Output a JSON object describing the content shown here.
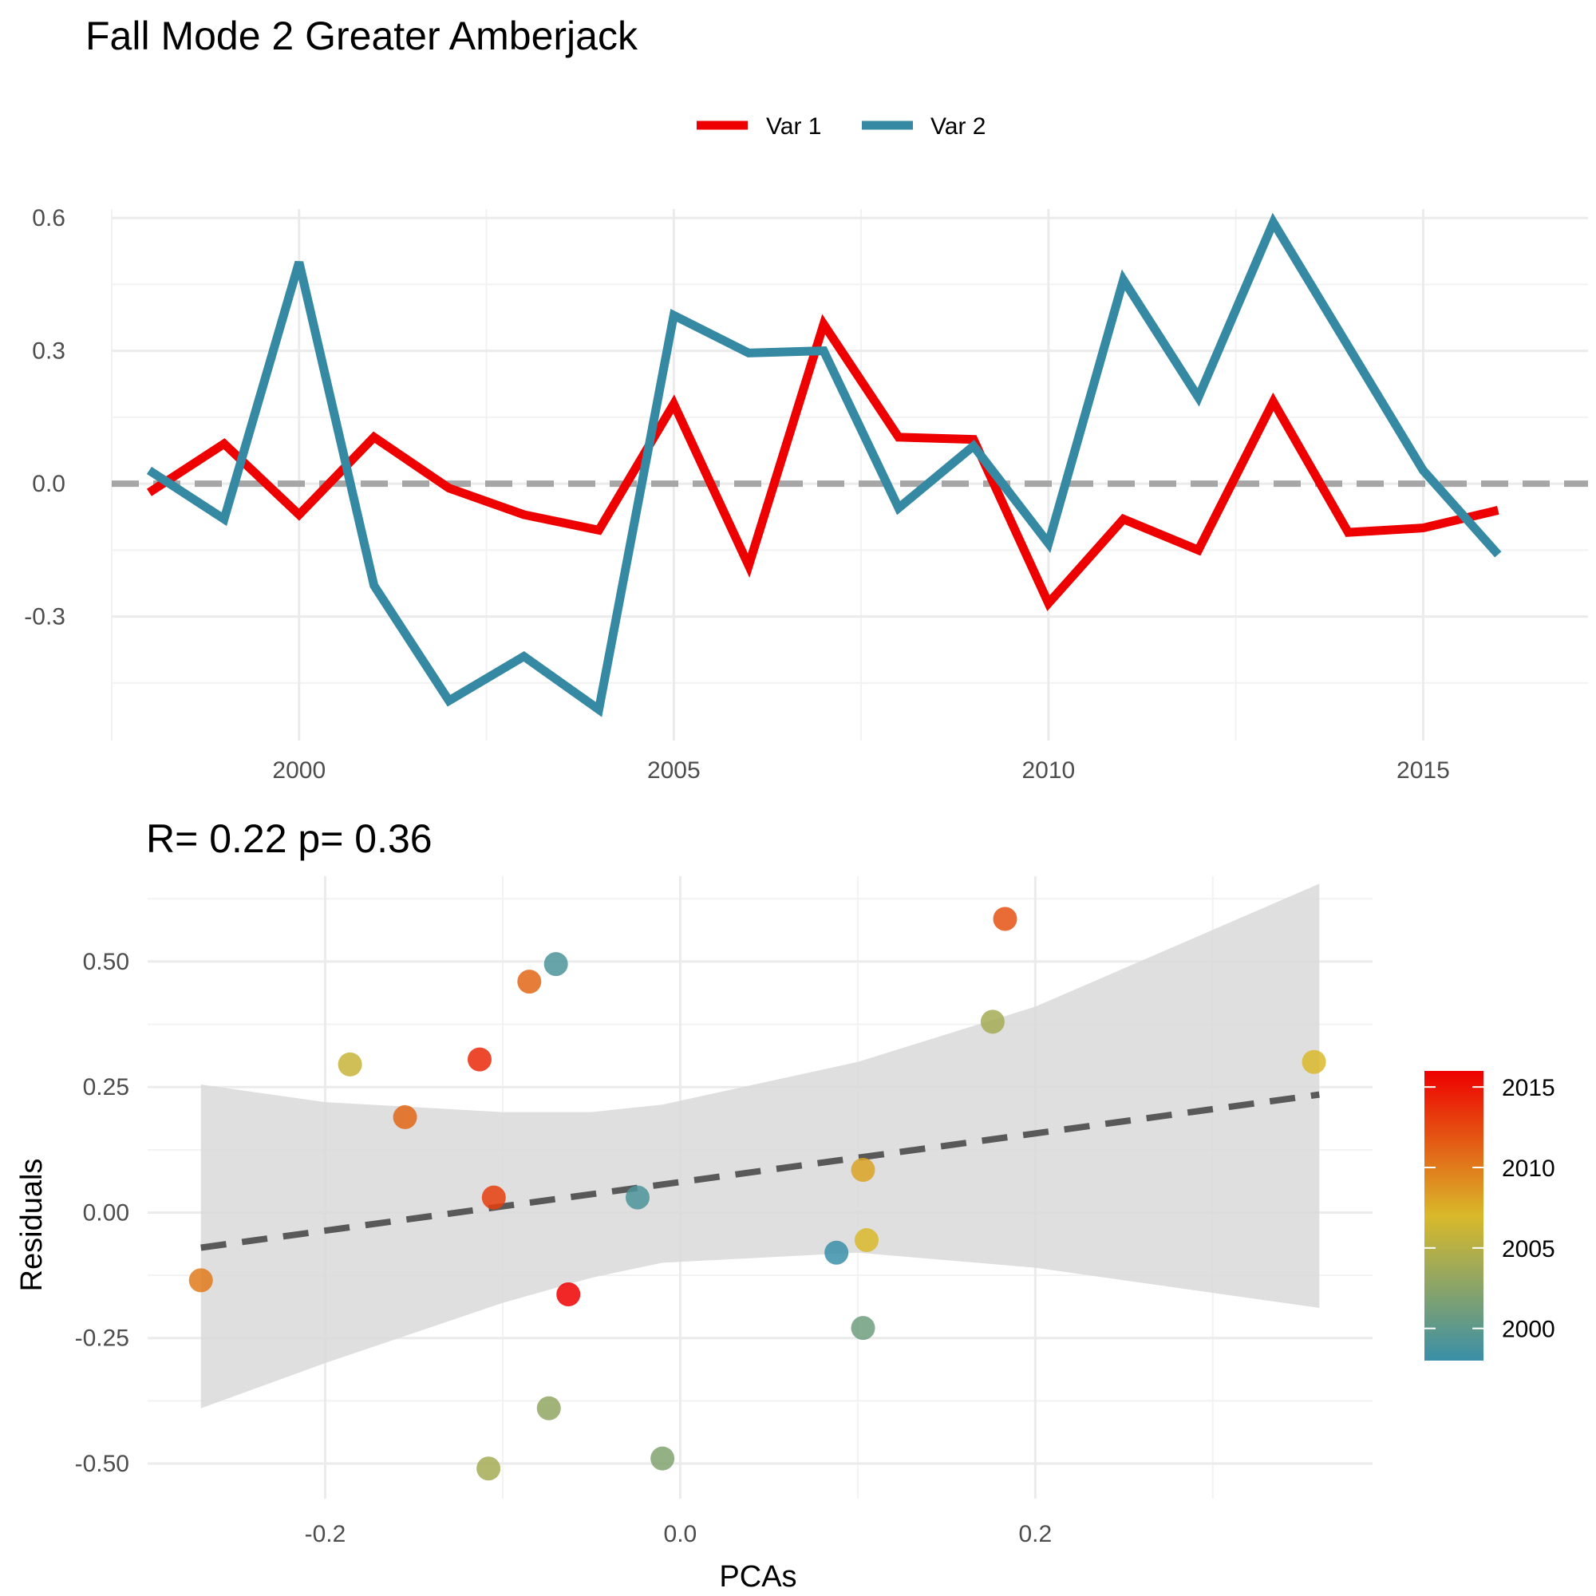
{
  "title": "Fall Mode 2 Greater Amberjack",
  "colors": {
    "var1": "#ee0000",
    "var2": "#3589a3",
    "zero_line": "#a6a6a6",
    "fit_line": "#595959",
    "ci_band": "#d9d9d9",
    "gradient_low": "#3a8fa8",
    "gradient_mid": "#d9b92a",
    "gradient_high": "#ee0000"
  },
  "chart_data": [
    {
      "type": "line",
      "title": "",
      "legend_position": "top",
      "xlabel": "",
      "ylabel": "",
      "xlim": [
        1997.5,
        2017.2
      ],
      "ylim": [
        -0.58,
        0.62
      ],
      "x_ticks": [
        2000,
        2005,
        2010,
        2015
      ],
      "x_tick_labels": [
        "2000",
        "2005",
        "2010",
        "2015"
      ],
      "y_ticks": [
        -0.3,
        0.0,
        0.3,
        0.6
      ],
      "y_tick_labels": [
        "-0.3",
        "0.0",
        "0.3",
        "0.6"
      ],
      "reference_line_y": 0,
      "x": [
        1998,
        1999,
        2000,
        2001,
        2002,
        2003,
        2004,
        2005,
        2006,
        2007,
        2008,
        2009,
        2010,
        2011,
        2012,
        2013,
        2014,
        2015,
        2016
      ],
      "series": [
        {
          "name": "Var 1",
          "values": [
            -0.02,
            0.09,
            -0.07,
            0.105,
            -0.01,
            -0.07,
            -0.105,
            0.18,
            -0.185,
            0.36,
            0.105,
            0.1,
            -0.27,
            -0.08,
            -0.15,
            0.185,
            -0.11,
            -0.1,
            -0.06
          ]
        },
        {
          "name": "Var 2",
          "values": [
            0.03,
            -0.08,
            0.5,
            -0.23,
            -0.49,
            -0.39,
            -0.51,
            0.38,
            0.295,
            0.3,
            -0.055,
            0.085,
            -0.135,
            0.46,
            0.195,
            0.59,
            0.31,
            0.03,
            -0.16
          ]
        }
      ]
    },
    {
      "type": "scatter",
      "title": "R= 0.22  p= 0.36",
      "xlabel": "PCAs",
      "ylabel": "Residuals",
      "xlim": [
        -0.3,
        0.39
      ],
      "ylim": [
        -0.57,
        0.67
      ],
      "x_ticks": [
        -0.2,
        0.0,
        0.2
      ],
      "x_tick_labels": [
        "-0.2",
        "0.0",
        "0.2"
      ],
      "y_ticks": [
        -0.5,
        -0.25,
        0.0,
        0.25,
        0.5
      ],
      "y_tick_labels": [
        "-0.50",
        "-0.25",
        "0.00",
        "0.25",
        "0.50"
      ],
      "color_legend": {
        "range": [
          1998,
          2016
        ],
        "ticks": [
          2000,
          2005,
          2010,
          2015
        ],
        "tick_labels": [
          "2000",
          "2005",
          "2010",
          "2015"
        ]
      },
      "fit_line": {
        "x": [
          -0.27,
          0.36
        ],
        "y": [
          -0.07,
          0.235
        ]
      },
      "confidence_band": {
        "x": [
          -0.27,
          -0.2,
          -0.1,
          -0.05,
          -0.01,
          0.1,
          0.2,
          0.36
        ],
        "upper": [
          0.255,
          0.22,
          0.2,
          0.2,
          0.215,
          0.3,
          0.41,
          0.655
        ],
        "lower": [
          -0.39,
          -0.3,
          -0.18,
          -0.13,
          -0.1,
          -0.08,
          -0.11,
          -0.19
        ]
      },
      "points": [
        {
          "x": -0.27,
          "y": -0.135,
          "year": 2010
        },
        {
          "x": -0.186,
          "y": 0.295,
          "year": 2006
        },
        {
          "x": -0.155,
          "y": 0.19,
          "year": 2011
        },
        {
          "x": -0.113,
          "y": 0.305,
          "year": 2014
        },
        {
          "x": -0.105,
          "y": 0.03,
          "year": 2013
        },
        {
          "x": -0.108,
          "y": -0.51,
          "year": 2004
        },
        {
          "x": -0.085,
          "y": 0.46,
          "year": 2011
        },
        {
          "x": -0.07,
          "y": 0.495,
          "year": 1999
        },
        {
          "x": -0.074,
          "y": -0.39,
          "year": 2003
        },
        {
          "x": -0.063,
          "y": -0.163,
          "year": 2016
        },
        {
          "x": -0.024,
          "y": 0.03,
          "year": 1999
        },
        {
          "x": -0.01,
          "y": -0.49,
          "year": 2002
        },
        {
          "x": 0.088,
          "y": -0.08,
          "year": 1998
        },
        {
          "x": 0.103,
          "y": 0.085,
          "year": 2008
        },
        {
          "x": 0.105,
          "y": -0.055,
          "year": 2007
        },
        {
          "x": 0.103,
          "y": -0.23,
          "year": 2001
        },
        {
          "x": 0.176,
          "y": 0.38,
          "year": 2004
        },
        {
          "x": 0.183,
          "y": 0.585,
          "year": 2012
        },
        {
          "x": 0.357,
          "y": 0.3,
          "year": 2007
        }
      ]
    }
  ]
}
